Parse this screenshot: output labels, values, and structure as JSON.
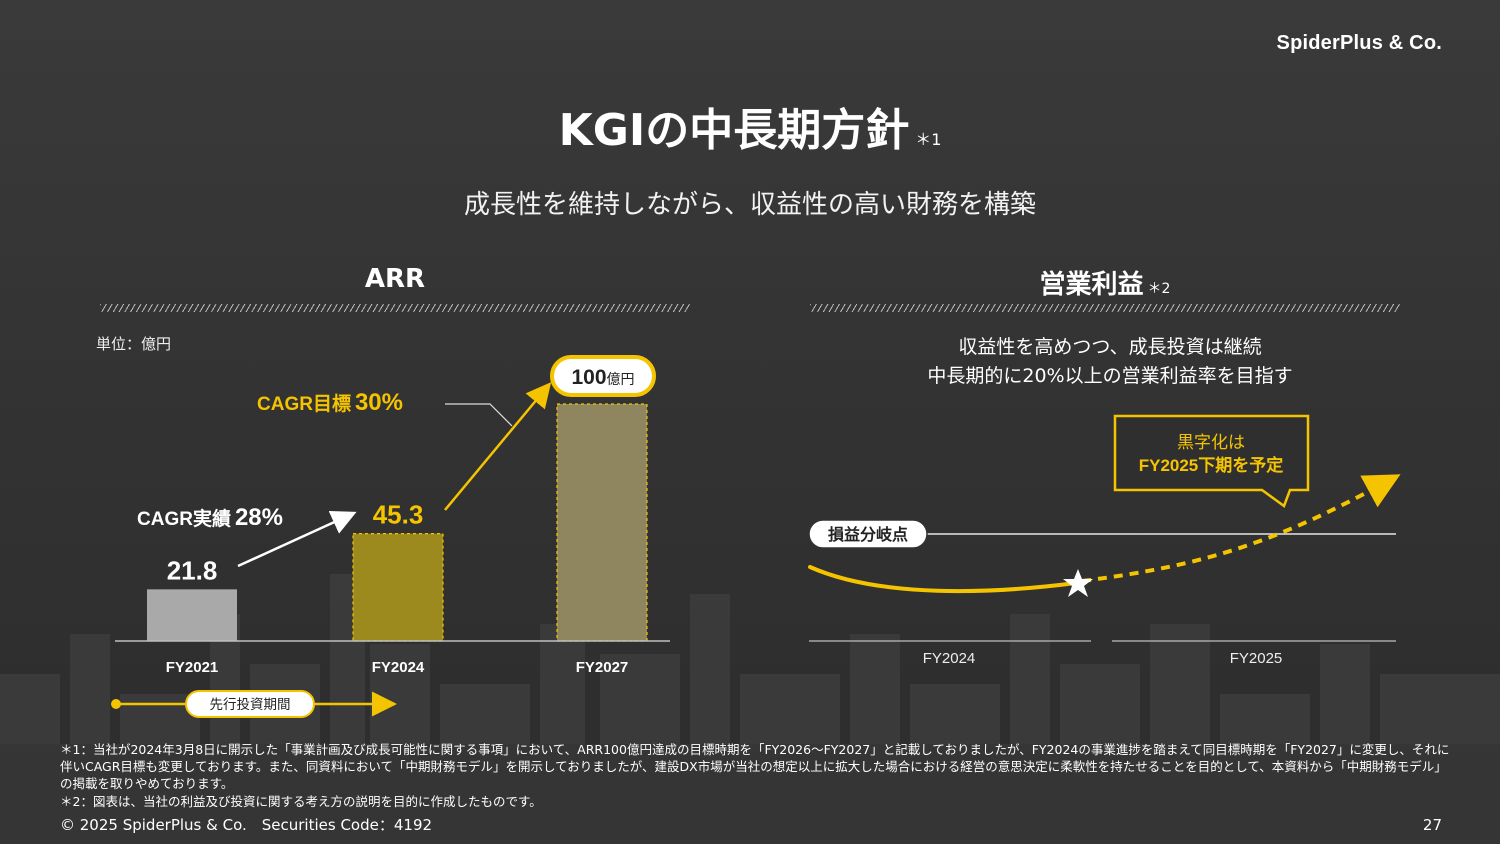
{
  "header": {
    "brand": "SpiderPlus & Co.",
    "title": "KGIの中長期方針",
    "title_note": "＊1",
    "subtitle": "成長性を維持しながら、収益性の高い財務を構築"
  },
  "arr_section": {
    "title": "ARR",
    "unit": "単位：億円",
    "cagr_actual_label": "CAGR実績",
    "cagr_actual_value": "28%",
    "cagr_target_label": "CAGR目標",
    "cagr_target_value": "30%",
    "target_callout_value": "100",
    "target_callout_unit": "億円",
    "period_label": "先行投資期間"
  },
  "profit_section": {
    "title": "営業利益",
    "title_note": "＊2",
    "message_line1": "収益性を高めつつ、成長投資は継続",
    "message_line2": "中長期的に20%以上の営業利益率を目指す",
    "breakeven_label": "損益分岐点",
    "callout_line1": "黒字化は",
    "callout_line2": "FY2025下期を予定",
    "x_labels": [
      "FY2024",
      "FY2025"
    ]
  },
  "chart_data": [
    {
      "type": "bar",
      "title": "ARR",
      "categories": [
        "FY2021",
        "FY2024",
        "FY2027"
      ],
      "values": [
        21.8,
        45.3,
        100
      ],
      "value_labels": [
        "21.8",
        "45.3",
        ""
      ],
      "unit": "億円",
      "ylim": [
        0,
        100
      ],
      "bar_colors": [
        "#a9a9a9",
        "#9c8a1e",
        "#8f8660"
      ],
      "grid": false
    },
    {
      "type": "line",
      "title": "営業利益",
      "categories": [
        "FY2024",
        "FY2025"
      ],
      "note": "conceptual curve without numeric values",
      "grid": false
    }
  ],
  "footer": {
    "note1": "＊1：当社が2024年3月8日に開示した「事業計画及び成長可能性に関する事項」において、ARR100億円達成の目標時期を「FY2026～FY2027」と記載しておりましたが、FY2024の事業進捗を踏まえて同目標時期を「FY2027」に変更し、それに伴いCAGR目標も変更しております。また、同資料において「中期財務モデル」を開示しておりましたが、建設DX市場が当社の想定以上に拡大した場合における経営の意思決定に柔軟性を持たせることを目的として、本資料から「中期財務モデル」の掲載を取りやめております。",
    "note2": "＊2：図表は、当社の利益及び投資に関する考え方の説明を目的に作成したものです。",
    "copyright": "© 2025 SpiderPlus & Co.　Securities Code：4192",
    "page_number": "27"
  },
  "colors": {
    "accent_yellow": "#f5c400",
    "background": "#333333"
  }
}
